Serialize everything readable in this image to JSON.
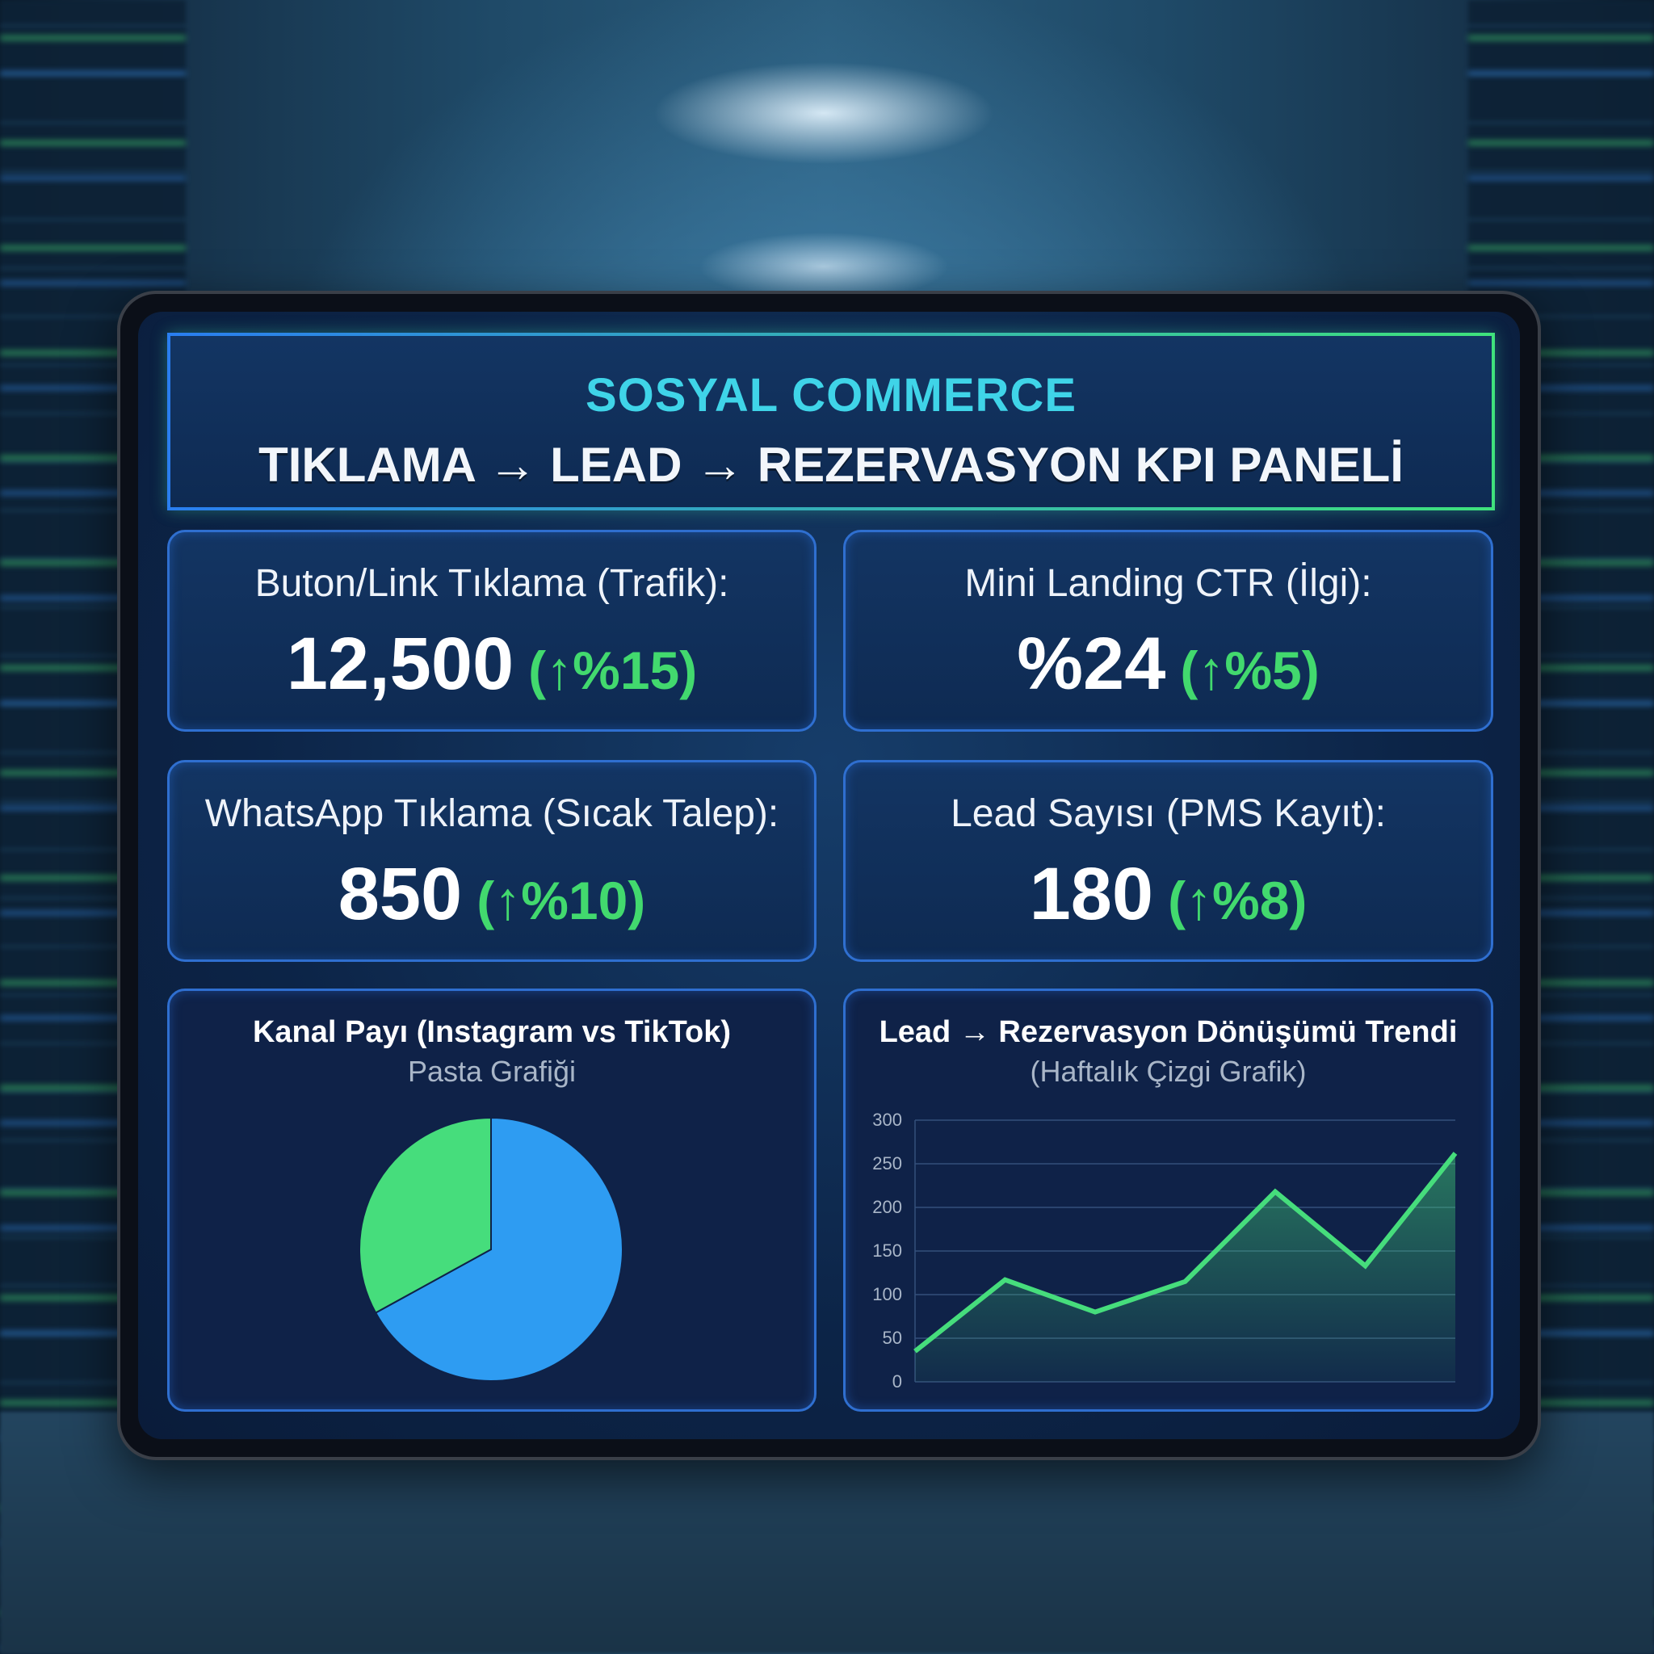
{
  "header": {
    "title": "SOSYAL COMMERCE",
    "subtitle": "TIKLAMA → LEAD → REZERVASYON KPI PANELİ"
  },
  "kpis": [
    {
      "label": "Buton/Link Tıklama (Trafik):",
      "value": "12,500",
      "change": "(↑%15)"
    },
    {
      "label": "Mini Landing CTR (İlgi):",
      "value": "%24",
      "change": "(↑%5)"
    },
    {
      "label": "WhatsApp Tıklama (Sıcak Talep):",
      "value": "850",
      "change": "(↑%10)"
    },
    {
      "label": "Lead Sayısı (PMS Kayıt):",
      "value": "180",
      "change": "(↑%8)"
    }
  ],
  "chart_data": [
    {
      "type": "pie",
      "title": "Kanal Payı (Instagram vs TikTok)",
      "subtitle": "Pasta Grafiği",
      "slices": [
        {
          "label": "Instagram",
          "value": 67,
          "color": "#2e9cf2"
        },
        {
          "label": "TikTok",
          "value": 33,
          "color": "#46dd7c"
        }
      ]
    },
    {
      "type": "area",
      "title": "Lead → Rezervasyon Dönüşümü Trendi",
      "subtitle": "(Haftalık Çizgi Grafik)",
      "x": [
        1,
        2,
        3,
        4,
        5,
        6,
        7
      ],
      "values": [
        35,
        117,
        80,
        115,
        218,
        133,
        262
      ],
      "ylim": [
        0,
        300
      ],
      "yticks": [
        "0",
        "50",
        "100",
        "150",
        "200",
        "250",
        "300"
      ],
      "grid": true,
      "color": "#46dd7c"
    }
  ]
}
